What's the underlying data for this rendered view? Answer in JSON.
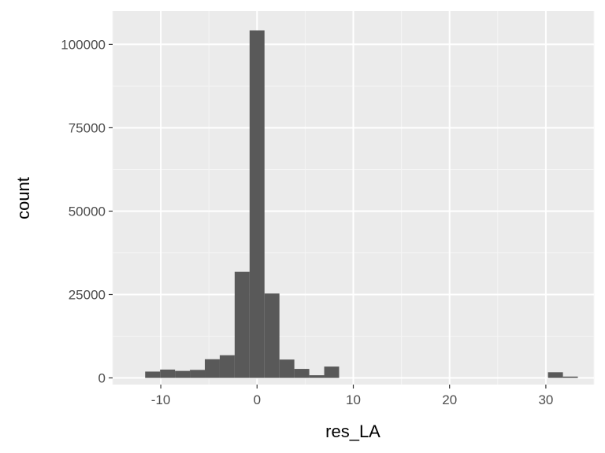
{
  "chart_data": {
    "type": "bar",
    "xlabel": "res_LA",
    "ylabel": "count",
    "xlim": [
      -15,
      35
    ],
    "ylim": [
      -2000,
      110000
    ],
    "x_ticks": [
      -10,
      0,
      10,
      20,
      30
    ],
    "x_tick_labels": [
      "-10",
      "0",
      "10",
      "20",
      "30"
    ],
    "y_ticks": [
      0,
      25000,
      50000,
      75000,
      100000
    ],
    "y_tick_labels": [
      "0",
      "25000",
      "50000",
      "75000",
      "100000"
    ],
    "bin_width": 1.55,
    "bins": [
      {
        "x": -10.85,
        "count": 1900
      },
      {
        "x": -9.3,
        "count": 2500
      },
      {
        "x": -7.75,
        "count": 2100
      },
      {
        "x": -6.2,
        "count": 2400
      },
      {
        "x": -4.65,
        "count": 5600
      },
      {
        "x": -3.1,
        "count": 6800
      },
      {
        "x": -1.55,
        "count": 31800
      },
      {
        "x": 0.0,
        "count": 104200
      },
      {
        "x": 1.55,
        "count": 25300
      },
      {
        "x": 3.1,
        "count": 5500
      },
      {
        "x": 4.65,
        "count": 2700
      },
      {
        "x": 6.2,
        "count": 800
      },
      {
        "x": 7.75,
        "count": 3400
      },
      {
        "x": 9.3,
        "count": 0
      },
      {
        "x": 10.85,
        "count": 0
      },
      {
        "x": 12.4,
        "count": 0
      },
      {
        "x": 13.95,
        "count": 0
      },
      {
        "x": 15.5,
        "count": 0
      },
      {
        "x": 17.05,
        "count": 0
      },
      {
        "x": 18.6,
        "count": 0
      },
      {
        "x": 20.15,
        "count": 0
      },
      {
        "x": 21.7,
        "count": 0
      },
      {
        "x": 23.25,
        "count": 0
      },
      {
        "x": 24.8,
        "count": 0
      },
      {
        "x": 26.35,
        "count": 0
      },
      {
        "x": 27.9,
        "count": 0
      },
      {
        "x": 29.45,
        "count": 0
      },
      {
        "x": 31.0,
        "count": 1700
      },
      {
        "x": 32.55,
        "count": 400
      }
    ],
    "bar_color": "#595959",
    "panel_color": "#ebebeb",
    "grid": true
  }
}
